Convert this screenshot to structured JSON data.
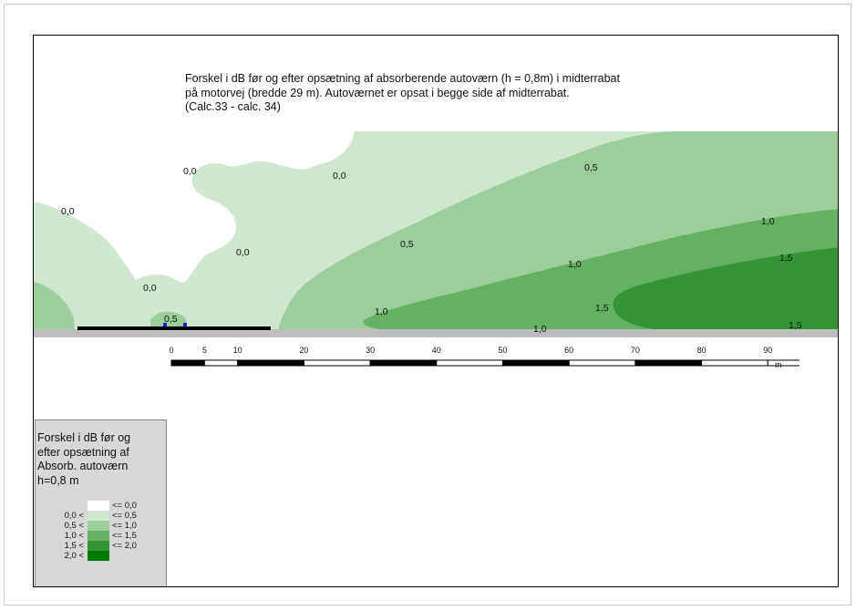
{
  "title_lines": [
    "Forskel i dB før og efter opsætning af absorberende autoværn (h = 0,8m) i midterrabat",
    "på motorvej (bredde 29 m). Autoværnet er opsat i begge side af midterrabat.",
    "(Calc.33 - calc. 34)"
  ],
  "colors": {
    "zone_0_0": "#ffffff",
    "zone_0_0_5": "#cfe6cf",
    "zone_0_5_1_0": "#9ccd9b",
    "zone_1_0_1_5": "#63b163",
    "zone_1_5_2_0": "#339633",
    "zone_2_0": "#007a00",
    "ground": "#bdbdbd",
    "road": "#000000",
    "barrier_markers": "#1a1aff"
  },
  "contour_labels": [
    "0,0",
    "0,0",
    "0,0",
    "0,0",
    "0,0",
    "0,5",
    "0,5",
    "0,5",
    "1,0",
    "1,0",
    "1,0",
    "1,0",
    "1,5",
    "1,5",
    "1,5"
  ],
  "scale_bar": {
    "ticks": [
      "0",
      "5",
      "10",
      "20",
      "30",
      "40",
      "50",
      "60",
      "70",
      "80",
      "90"
    ],
    "unit": "m"
  },
  "legend": {
    "title_lines": [
      "Forskel i dB før og",
      "efter opsætning af",
      "Absorb. autoværn",
      "h=0,8 m"
    ],
    "rows": [
      {
        "lo": "",
        "hi": "<=  0,0",
        "color": "#ffffff"
      },
      {
        "lo": "0,0 <",
        "hi": "<=  0,5",
        "color": "#cfe6cf"
      },
      {
        "lo": "0,5 <",
        "hi": "<=  1,0",
        "color": "#9ccd9b"
      },
      {
        "lo": "1,0 <",
        "hi": "<=  1,5",
        "color": "#63b163"
      },
      {
        "lo": "1,5 <",
        "hi": "<=  2,0",
        "color": "#339633"
      },
      {
        "lo": "2,0 <",
        "hi": "",
        "color": "#007a00"
      }
    ]
  }
}
